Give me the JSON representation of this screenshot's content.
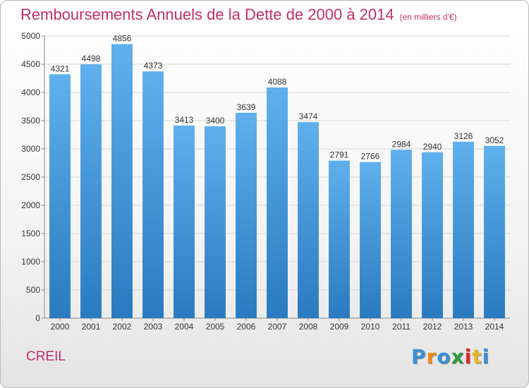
{
  "title": "Remboursements Annuels de la Dette de 2000 à 2014",
  "unit": "(en milliers d'€)",
  "city": "CREIL",
  "logo": {
    "letters": [
      "P",
      "r",
      "o",
      "x",
      "i",
      "t",
      "i"
    ],
    "colors": [
      "#3a8fd8",
      "#f08a1c",
      "#3a8fd8",
      "#2e9c3c",
      "#e2262d",
      "#e8b82a",
      "#3a8fd8"
    ]
  },
  "colors": {
    "bar_top": "#5fb0ec",
    "bar_bottom": "#2a7ac0",
    "title": "#c0306a",
    "grid": "#d6d6d6"
  },
  "chart_data": {
    "type": "bar",
    "title": "Remboursements Annuels de la Dette de 2000 à 2014",
    "unit": "(en milliers d'€)",
    "categories": [
      "2000",
      "2001",
      "2002",
      "2003",
      "2004",
      "2005",
      "2006",
      "2007",
      "2008",
      "2009",
      "2010",
      "2011",
      "2012",
      "2013",
      "2014"
    ],
    "values": [
      4321,
      4498,
      4856,
      4373,
      3413,
      3400,
      3639,
      4088,
      3474,
      2791,
      2766,
      2984,
      2940,
      3126,
      3052
    ],
    "ylim": [
      0,
      5000
    ],
    "yticks": [
      0,
      500,
      1000,
      1500,
      2000,
      2500,
      3000,
      3500,
      4000,
      4500,
      5000
    ],
    "grid": true,
    "data_labels": true
  }
}
